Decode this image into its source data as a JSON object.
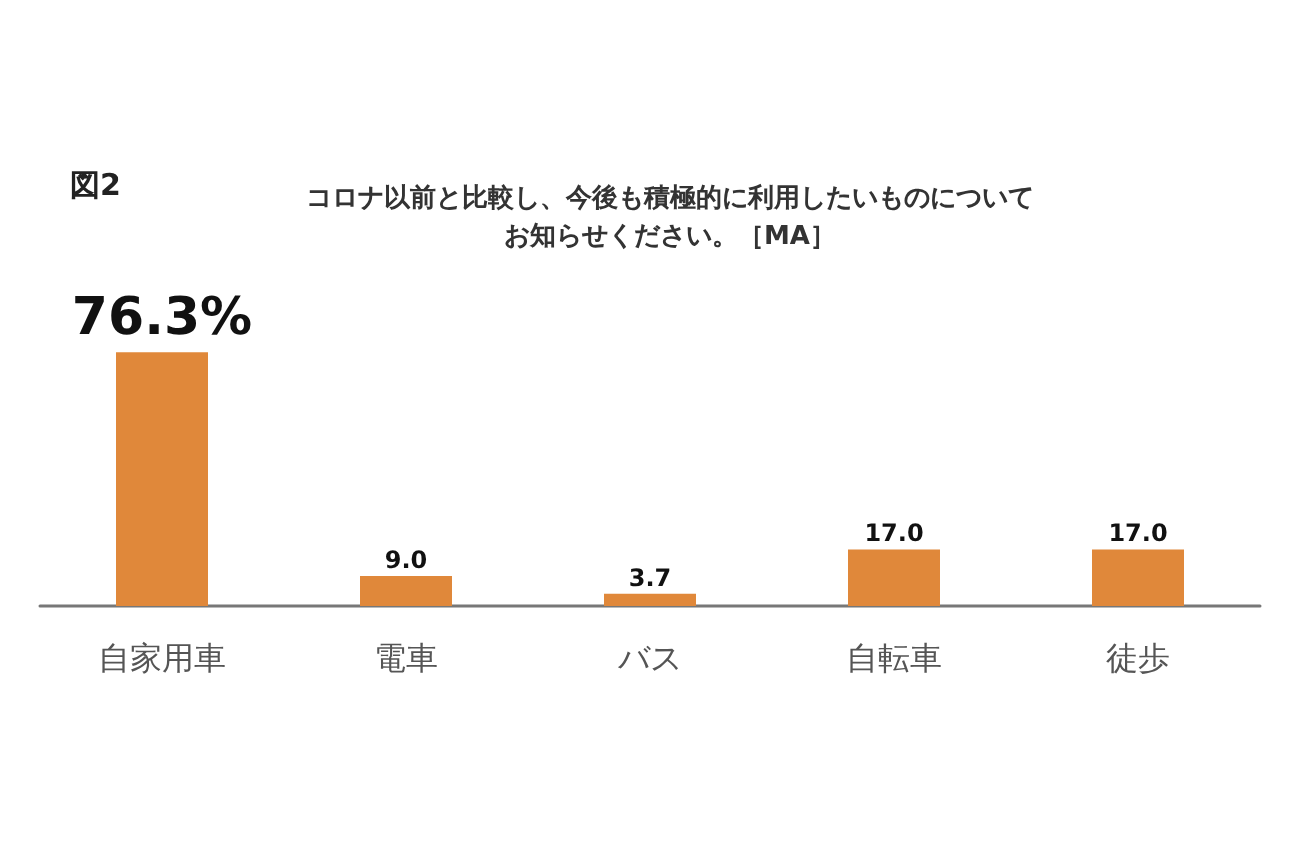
{
  "chart_data": {
    "type": "bar",
    "title": "図2",
    "subtitle": "コロナ以前と比較し、今後も積極的に利用したいものについてお知らせください。［MA］",
    "categories": [
      "自家用車",
      "電車",
      "バス",
      "自転車",
      "徒歩"
    ],
    "values": [
      76.3,
      9.0,
      3.7,
      17.0,
      17.0
    ],
    "value_labels": [
      "76.3%",
      "9.0",
      "3.7",
      "17.0",
      "17.0"
    ],
    "color": "#e0883a",
    "grid": false
  }
}
